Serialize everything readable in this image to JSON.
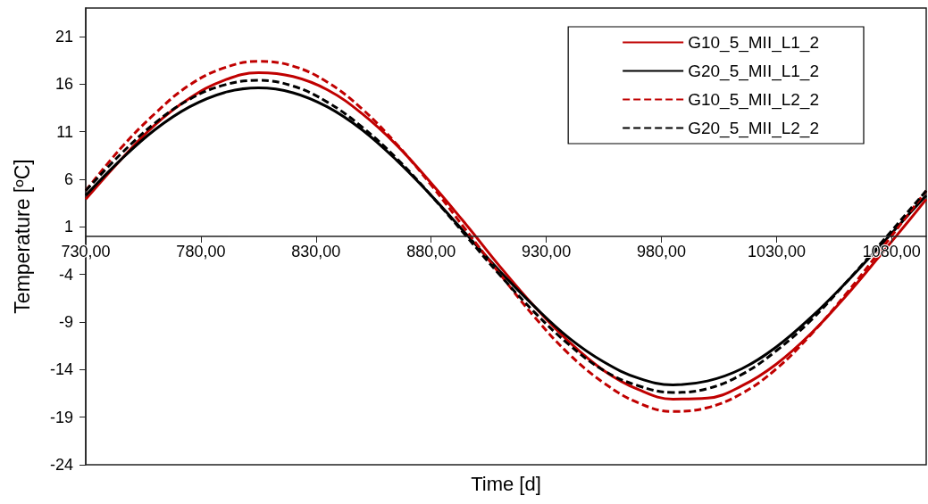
{
  "chart_data": {
    "type": "line",
    "xlabel": "Time [d]",
    "ylabel": "Temperature [ºC]",
    "x": [
      730,
      745,
      760,
      775,
      790,
      805,
      820,
      835,
      850,
      865,
      880,
      895,
      910,
      925,
      940,
      955,
      970,
      985,
      1000,
      1015,
      1030,
      1045,
      1060,
      1075,
      1090,
      1095
    ],
    "series": [
      {
        "name": "G10_5_MII_L1_2",
        "color": "#c00000",
        "line_style": "solid",
        "values": [
          3.9,
          8.0,
          11.7,
          14.5,
          16.4,
          17.2,
          16.8,
          15.4,
          12.9,
          9.6,
          5.6,
          1.3,
          -3.2,
          -7.4,
          -11.1,
          -14.1,
          -16.1,
          -17.1,
          -17.0,
          -15.7,
          -13.4,
          -10.2,
          -6.3,
          -2.0,
          2.4,
          3.9
        ]
      },
      {
        "name": "G20_5_MII_L1_2",
        "color": "#000000",
        "line_style": "solid",
        "values": [
          4.3,
          8.0,
          11.2,
          13.6,
          15.1,
          15.6,
          15.1,
          13.6,
          11.2,
          8.0,
          4.3,
          0.3,
          -3.7,
          -7.4,
          -10.7,
          -13.2,
          -14.9,
          -15.6,
          -15.2,
          -13.9,
          -11.6,
          -8.5,
          -4.9,
          -1.0,
          3.0,
          4.3
        ]
      },
      {
        "name": "G10_5_MII_L2_2",
        "color": "#c00000",
        "line_style": "dashed",
        "values": [
          4.8,
          9.2,
          12.9,
          15.9,
          17.7,
          18.4,
          17.9,
          16.2,
          13.4,
          9.7,
          5.4,
          0.7,
          -4.0,
          -8.5,
          -12.4,
          -15.4,
          -17.5,
          -18.4,
          -18.0,
          -16.5,
          -13.9,
          -10.3,
          -6.1,
          -1.5,
          3.2,
          4.8
        ]
      },
      {
        "name": "G20_5_MII_L2_2",
        "color": "#000000",
        "line_style": "dashed",
        "values": [
          4.8,
          8.6,
          11.9,
          14.4,
          15.9,
          16.4,
          15.8,
          14.1,
          11.5,
          8.2,
          4.3,
          0.1,
          -4.1,
          -8.0,
          -11.4,
          -14.1,
          -15.7,
          -16.4,
          -16.0,
          -14.5,
          -12.0,
          -8.8,
          -4.9,
          -0.8,
          3.4,
          4.8
        ]
      }
    ],
    "xlim": [
      730,
      1095
    ],
    "xticks": [
      {
        "value": 730,
        "label": "730,00"
      },
      {
        "value": 780,
        "label": "780,00"
      },
      {
        "value": 830,
        "label": "830,00"
      },
      {
        "value": 880,
        "label": "880,00"
      },
      {
        "value": 930,
        "label": "930,00"
      },
      {
        "value": 980,
        "label": "980,00"
      },
      {
        "value": 1030,
        "label": "1030,00"
      },
      {
        "value": 1080,
        "label": "1080,00"
      }
    ],
    "ylim": [
      -24,
      24
    ],
    "yticks": [
      -24,
      -19,
      -14,
      -9,
      -4,
      1,
      6,
      11,
      16,
      21
    ],
    "grid": false,
    "legend": "top right",
    "marker": "none"
  }
}
